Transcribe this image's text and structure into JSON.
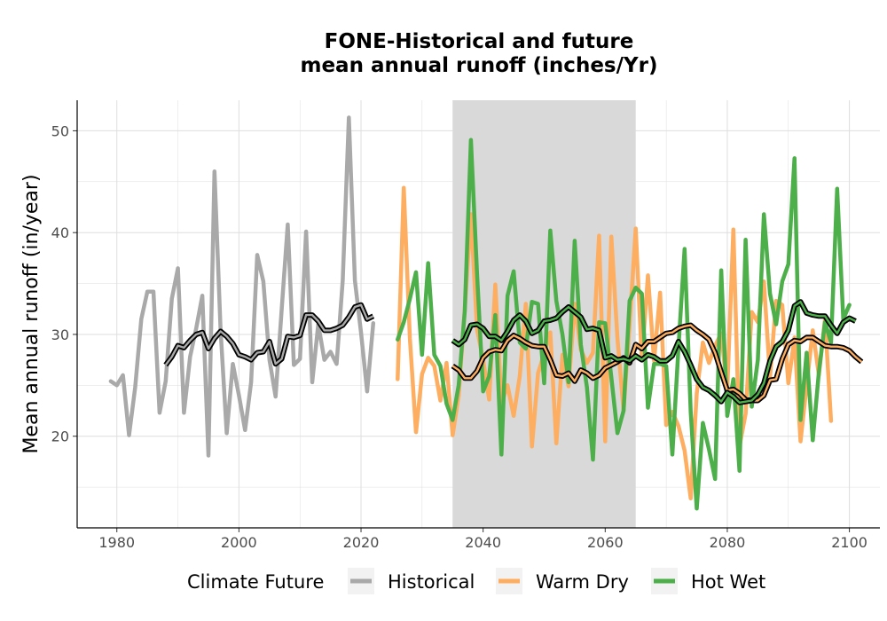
{
  "chart_data": {
    "type": "line",
    "title_line1": "FONE-Historical and future",
    "title_line2": "mean annual runoff (inches/Yr)",
    "ylabel": "Mean annual runoff (in/year)",
    "xlabel": "",
    "xlim": [
      1973.5,
      2105
    ],
    "ylim": [
      11,
      53
    ],
    "x_ticks": [
      1980,
      2000,
      2020,
      2040,
      2060,
      2080,
      2100
    ],
    "y_ticks": [
      20,
      30,
      40,
      50
    ],
    "grid": true,
    "shaded_period": [
      2035,
      2065
    ],
    "legend": {
      "title": "Climate Future",
      "position": "bottom",
      "entries": [
        "Historical",
        "Warm Dry",
        "Hot Wet"
      ]
    },
    "colors": {
      "Historical": "#a9a9a9",
      "Warm Dry": "#fdae61",
      "Hot Wet": "#4daf4a",
      "smooth": "#000000",
      "shade": "#d9d9d9",
      "grid": "#dedede"
    },
    "series": [
      {
        "name": "Historical",
        "x_start": 1979,
        "values": [
          25.4,
          25.0,
          26.0,
          20.1,
          24.8,
          31.5,
          34.2,
          34.2,
          22.3,
          25.4,
          33.5,
          36.5,
          22.3,
          27.8,
          30.6,
          33.8,
          18.1,
          46.0,
          30.4,
          20.3,
          27.1,
          24.0,
          20.6,
          25.3,
          37.8,
          35.2,
          27.5,
          23.9,
          32.5,
          40.8,
          27.0,
          27.6,
          40.1,
          25.3,
          31.0,
          27.5,
          28.3,
          27.1,
          35.3,
          51.3,
          35.3,
          30.2,
          24.4,
          31.1
        ]
      },
      {
        "name": "Warm Dry",
        "x_start": 2026,
        "values": [
          25.6,
          44.4,
          29.6,
          20.4,
          26.1,
          27.7,
          26.9,
          23.5,
          27.2,
          20.1,
          24.0,
          32.5,
          41.8,
          30.5,
          27.5,
          23.6,
          34.9,
          23.2,
          25.0,
          22.0,
          25.9,
          33.0,
          19.0,
          26.2,
          28.1,
          30.2,
          19.3,
          28.0,
          24.9,
          33.0,
          28.5,
          27.2,
          28.2,
          39.7,
          19.5,
          39.6,
          29.6,
          22.5,
          31.0,
          40.4,
          27.5,
          35.8,
          27.4,
          34.1,
          21.1,
          22.4,
          21.0,
          18.6,
          13.9,
          24.2,
          29.2,
          27.2,
          28.9,
          30.1,
          24.5,
          40.3,
          19.0,
          22.2,
          32.2,
          31.2,
          35.2,
          25.8,
          33.3,
          32.9,
          25.2,
          29.7,
          19.5,
          25.0,
          30.4,
          26.0,
          31.5,
          21.5
        ]
      },
      {
        "name": "Hot Wet",
        "x_start": 2026,
        "values": [
          29.5,
          31.2,
          33.5,
          36.1,
          28.0,
          37.0,
          28.0,
          26.9,
          23.2,
          21.6,
          25.0,
          32.3,
          49.1,
          36.0,
          24.4,
          25.9,
          31.9,
          18.2,
          33.8,
          36.2,
          29.2,
          28.6,
          33.2,
          33.0,
          25.2,
          40.2,
          33.3,
          30.0,
          25.3,
          39.2,
          29.0,
          24.8,
          17.7,
          31.2,
          31.1,
          25.8,
          20.3,
          22.5,
          33.3,
          34.6,
          34.0,
          22.8,
          27.1,
          27.1,
          26.9,
          18.2,
          28.7,
          38.4,
          22.4,
          12.9,
          21.3,
          18.7,
          15.8,
          36.3,
          22.0,
          25.6,
          16.6,
          39.3,
          22.9,
          27.5,
          41.8,
          34.0,
          31.0,
          35.2,
          36.9,
          47.3,
          21.6,
          28.2,
          19.6,
          26.3,
          31.2,
          29.2,
          44.3,
          31.5,
          32.9
        ]
      },
      {
        "name": "Historical smoothed",
        "x_start": 1988,
        "values": [
          27.0,
          27.8,
          28.9,
          28.7,
          29.4,
          30.0,
          30.2,
          28.6,
          29.6,
          30.3,
          29.8,
          29.1,
          28.0,
          27.8,
          27.5,
          28.2,
          28.3,
          29.3,
          27.1,
          27.6,
          29.8,
          29.7,
          29.9,
          31.9,
          31.9,
          31.3,
          30.4,
          30.4,
          30.6,
          30.9,
          31.7,
          32.7,
          32.9,
          31.5,
          31.8
        ]
      },
      {
        "name": "Warm Dry smoothed",
        "x_start": 2035,
        "values": [
          26.9,
          26.5,
          25.7,
          25.7,
          26.4,
          27.7,
          28.3,
          28.5,
          28.4,
          29.4,
          29.9,
          29.6,
          29.2,
          28.9,
          28.8,
          28.8,
          27.5,
          26.0,
          25.9,
          26.2,
          25.4,
          26.5,
          26.2,
          25.7,
          26.0,
          26.7,
          27.0,
          27.3,
          27.7,
          27.2,
          29.0,
          28.6,
          29.3,
          29.3,
          29.7,
          30.1,
          30.2,
          30.6,
          30.8,
          30.9,
          30.4,
          30.0,
          29.5,
          28.2,
          26.3,
          24.5,
          24.6,
          24.2,
          23.6,
          23.5,
          23.5,
          24.0,
          25.5,
          25.6,
          27.6,
          29.0,
          29.4,
          29.3,
          29.7,
          29.7,
          29.3,
          28.9,
          28.8,
          28.8,
          28.7,
          28.4,
          27.8,
          27.3
        ]
      },
      {
        "name": "Hot Wet smoothed",
        "x_start": 2035,
        "values": [
          29.4,
          29.0,
          29.5,
          30.9,
          31.0,
          30.6,
          29.8,
          29.8,
          29.4,
          30.3,
          31.4,
          31.9,
          31.3,
          30.1,
          30.4,
          31.3,
          31.4,
          31.6,
          32.2,
          32.7,
          32.2,
          31.7,
          30.5,
          30.6,
          30.4,
          27.7,
          27.9,
          27.5,
          27.6,
          27.4,
          27.9,
          27.5,
          28.0,
          27.8,
          27.4,
          27.4,
          27.9,
          29.3,
          28.3,
          27.0,
          25.6,
          24.8,
          24.5,
          24.0,
          23.4,
          24.3,
          23.9,
          23.3,
          23.4,
          23.5,
          24.1,
          25.2,
          27.4,
          28.8,
          29.3,
          30.4,
          32.8,
          33.2,
          32.1,
          31.9,
          31.8,
          31.8,
          30.9,
          30.1,
          31.2,
          31.6,
          31.3
        ]
      }
    ]
  }
}
